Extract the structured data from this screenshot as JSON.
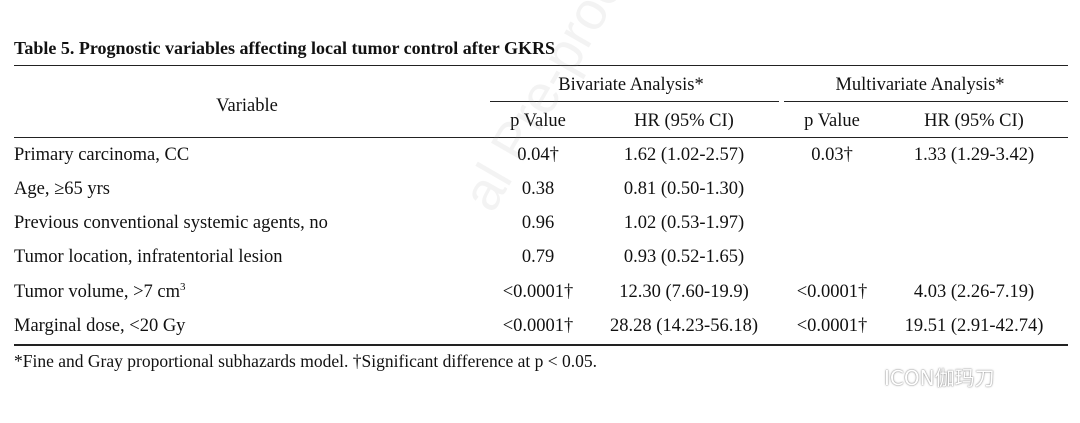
{
  "table": {
    "title": "Table 5. Prognostic variables affecting local tumor control after GKRS",
    "header": {
      "variable": "Variable",
      "bivariate": "Bivariate Analysis*",
      "multivariate": "Multivariate Analysis*",
      "p_value": "p Value",
      "hr": "HR (95% CI)"
    },
    "rows": [
      {
        "variable": "Primary carcinoma, CC",
        "bi_p": "0.04†",
        "bi_hr": "1.62 (1.02-2.57)",
        "multi_p": "0.03†",
        "multi_hr": "1.33 (1.29-3.42)"
      },
      {
        "variable": "Age, ≥65 yrs",
        "bi_p": "0.38",
        "bi_hr": "0.81 (0.50-1.30)",
        "multi_p": "",
        "multi_hr": ""
      },
      {
        "variable": "Previous conventional systemic agents, no",
        "bi_p": "0.96",
        "bi_hr": "1.02 (0.53-1.97)",
        "multi_p": "",
        "multi_hr": ""
      },
      {
        "variable": "Tumor location, infratentorial lesion",
        "bi_p": "0.79",
        "bi_hr": "0.93 (0.52-1.65)",
        "multi_p": "",
        "multi_hr": ""
      },
      {
        "variable": "Tumor volume, >7 cm",
        "variable_sup": "3",
        "bi_p": "<0.0001†",
        "bi_hr": "12.30 (7.60-19.9)",
        "multi_p": "<0.0001†",
        "multi_hr": "4.03 (2.26-7.19)"
      },
      {
        "variable": "Marginal dose, <20 Gy",
        "bi_p": "<0.0001†",
        "bi_hr": "28.28 (14.23-56.18)",
        "multi_p": "<0.0001†",
        "multi_hr": "19.51 (2.91-42.74)"
      }
    ],
    "footnote": "*Fine and Gray proportional subhazards model. †Significant difference at p < 0.05."
  },
  "watermark": "al Pre-proof",
  "brand": {
    "icon": "wechat-icon",
    "label": "ICON伽玛刀"
  }
}
